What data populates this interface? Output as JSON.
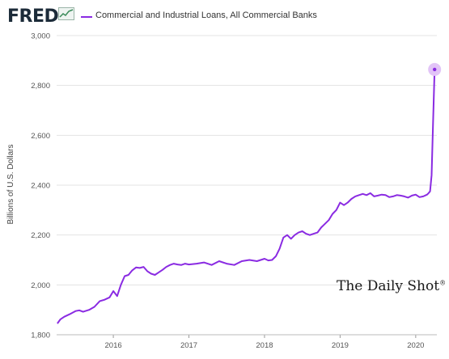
{
  "header": {
    "logo_text": "FRED",
    "logo_icon": "line-chart-icon",
    "legend_label": "Commercial and Industrial Loans, All Commercial Banks",
    "legend_color": "#8a2be2"
  },
  "watermark": {
    "text": "The Daily Shot",
    "mark": "®"
  },
  "chart_data": {
    "type": "line",
    "title": "",
    "xlabel": "",
    "ylabel": "Billions of U.S. Dollars",
    "ylim": [
      1800,
      3000
    ],
    "yticks": [
      1800,
      2000,
      2200,
      2400,
      2600,
      2800,
      3000
    ],
    "ytick_labels": [
      "1,800",
      "2,000",
      "2,200",
      "2,400",
      "2,600",
      "2,800",
      "3,000"
    ],
    "xlim": [
      2015.25,
      2020.28
    ],
    "xticks": [
      2016,
      2017,
      2018,
      2019,
      2020
    ],
    "xtick_labels": [
      "2016",
      "2017",
      "2018",
      "2019",
      "2020"
    ],
    "grid": true,
    "line_color": "#8a2be2",
    "highlight_color": "#e2c4f7",
    "series": [
      {
        "name": "Commercial and Industrial Loans, All Commercial Banks",
        "x": [
          2015.26,
          2015.3,
          2015.35,
          2015.42,
          2015.5,
          2015.55,
          2015.6,
          2015.68,
          2015.75,
          2015.82,
          2015.88,
          2015.95,
          2016.0,
          2016.05,
          2016.1,
          2016.15,
          2016.2,
          2016.25,
          2016.3,
          2016.35,
          2016.4,
          2016.45,
          2016.5,
          2016.55,
          2016.6,
          2016.65,
          2016.7,
          2016.75,
          2016.8,
          2016.85,
          2016.9,
          2016.95,
          2017.0,
          2017.1,
          2017.2,
          2017.3,
          2017.4,
          2017.5,
          2017.6,
          2017.7,
          2017.8,
          2017.9,
          2018.0,
          2018.05,
          2018.1,
          2018.15,
          2018.2,
          2018.25,
          2018.3,
          2018.35,
          2018.4,
          2018.45,
          2018.5,
          2018.55,
          2018.6,
          2018.65,
          2018.7,
          2018.75,
          2018.8,
          2018.85,
          2018.9,
          2018.95,
          2019.0,
          2019.05,
          2019.1,
          2019.15,
          2019.2,
          2019.25,
          2019.3,
          2019.35,
          2019.4,
          2019.45,
          2019.5,
          2019.55,
          2019.6,
          2019.65,
          2019.7,
          2019.75,
          2019.8,
          2019.85,
          2019.9,
          2019.95,
          2020.0,
          2020.05,
          2020.1,
          2020.15,
          2020.17,
          2020.19,
          2020.21,
          2020.23,
          2020.25
        ],
        "values": [
          1845,
          1862,
          1872,
          1882,
          1895,
          1898,
          1892,
          1900,
          1912,
          1935,
          1940,
          1950,
          1975,
          1955,
          2000,
          2035,
          2040,
          2058,
          2070,
          2068,
          2072,
          2055,
          2045,
          2040,
          2050,
          2060,
          2072,
          2080,
          2085,
          2082,
          2080,
          2085,
          2082,
          2085,
          2090,
          2080,
          2095,
          2085,
          2080,
          2095,
          2100,
          2095,
          2105,
          2098,
          2100,
          2115,
          2145,
          2190,
          2200,
          2185,
          2200,
          2210,
          2215,
          2205,
          2200,
          2205,
          2210,
          2230,
          2245,
          2260,
          2285,
          2300,
          2330,
          2320,
          2330,
          2345,
          2355,
          2360,
          2365,
          2360,
          2368,
          2355,
          2358,
          2362,
          2360,
          2352,
          2355,
          2360,
          2358,
          2355,
          2350,
          2358,
          2362,
          2352,
          2355,
          2362,
          2368,
          2375,
          2440,
          2650,
          2864
        ]
      }
    ]
  }
}
